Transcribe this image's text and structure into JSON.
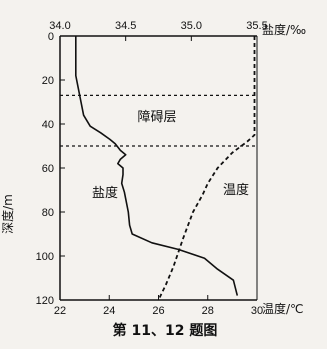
{
  "chart_data": {
    "type": "line",
    "caption": "第 11、12 题图",
    "x_top": {
      "label": "盐度/‰",
      "range": [
        34.0,
        35.5
      ],
      "ticks": [
        "34.0",
        "34.5",
        "35.0",
        "35.5"
      ]
    },
    "x_bottom": {
      "label": "温度/℃",
      "range": [
        22,
        30
      ],
      "ticks": [
        "22",
        "24",
        "26",
        "28",
        "30"
      ]
    },
    "y": {
      "label": "深度/m",
      "range": [
        0,
        120
      ],
      "ticks": [
        "0",
        "20",
        "40",
        "60",
        "80",
        "100",
        "120"
      ],
      "inverted": true
    },
    "layer": {
      "label": "障碍层",
      "top_depth": 27,
      "bottom_depth": 50
    },
    "series": [
      {
        "name": "盐度",
        "axis": "top",
        "style": "solid",
        "points": [
          [
            34.12,
            0
          ],
          [
            34.12,
            18
          ],
          [
            34.14,
            24
          ],
          [
            34.16,
            30
          ],
          [
            34.18,
            36
          ],
          [
            34.23,
            41
          ],
          [
            34.31,
            44
          ],
          [
            34.38,
            47
          ],
          [
            34.42,
            49
          ],
          [
            34.46,
            52
          ],
          [
            34.5,
            54
          ],
          [
            34.46,
            56
          ],
          [
            34.44,
            58
          ],
          [
            34.48,
            60
          ],
          [
            34.48,
            63
          ],
          [
            34.47,
            67
          ],
          [
            34.49,
            71
          ],
          [
            34.5,
            74
          ],
          [
            34.52,
            80
          ],
          [
            34.53,
            86
          ],
          [
            34.55,
            90
          ],
          [
            34.7,
            94
          ],
          [
            34.9,
            97
          ],
          [
            35.1,
            101
          ],
          [
            35.2,
            106
          ],
          [
            35.32,
            111
          ],
          [
            35.35,
            118
          ]
        ]
      },
      {
        "name": "温度",
        "axis": "bottom",
        "style": "dashed",
        "points": [
          [
            29.9,
            0
          ],
          [
            29.9,
            20
          ],
          [
            29.9,
            45
          ],
          [
            29.6,
            48
          ],
          [
            29.0,
            53
          ],
          [
            28.4,
            60
          ],
          [
            28.0,
            67
          ],
          [
            27.8,
            72
          ],
          [
            27.4,
            80
          ],
          [
            27.0,
            92
          ],
          [
            26.6,
            105
          ],
          [
            26.3,
            113
          ],
          [
            26.0,
            120
          ]
        ]
      }
    ],
    "annotations": [
      {
        "text": "盐度",
        "series": "盐度"
      },
      {
        "text": "温度",
        "series": "温度"
      }
    ]
  }
}
